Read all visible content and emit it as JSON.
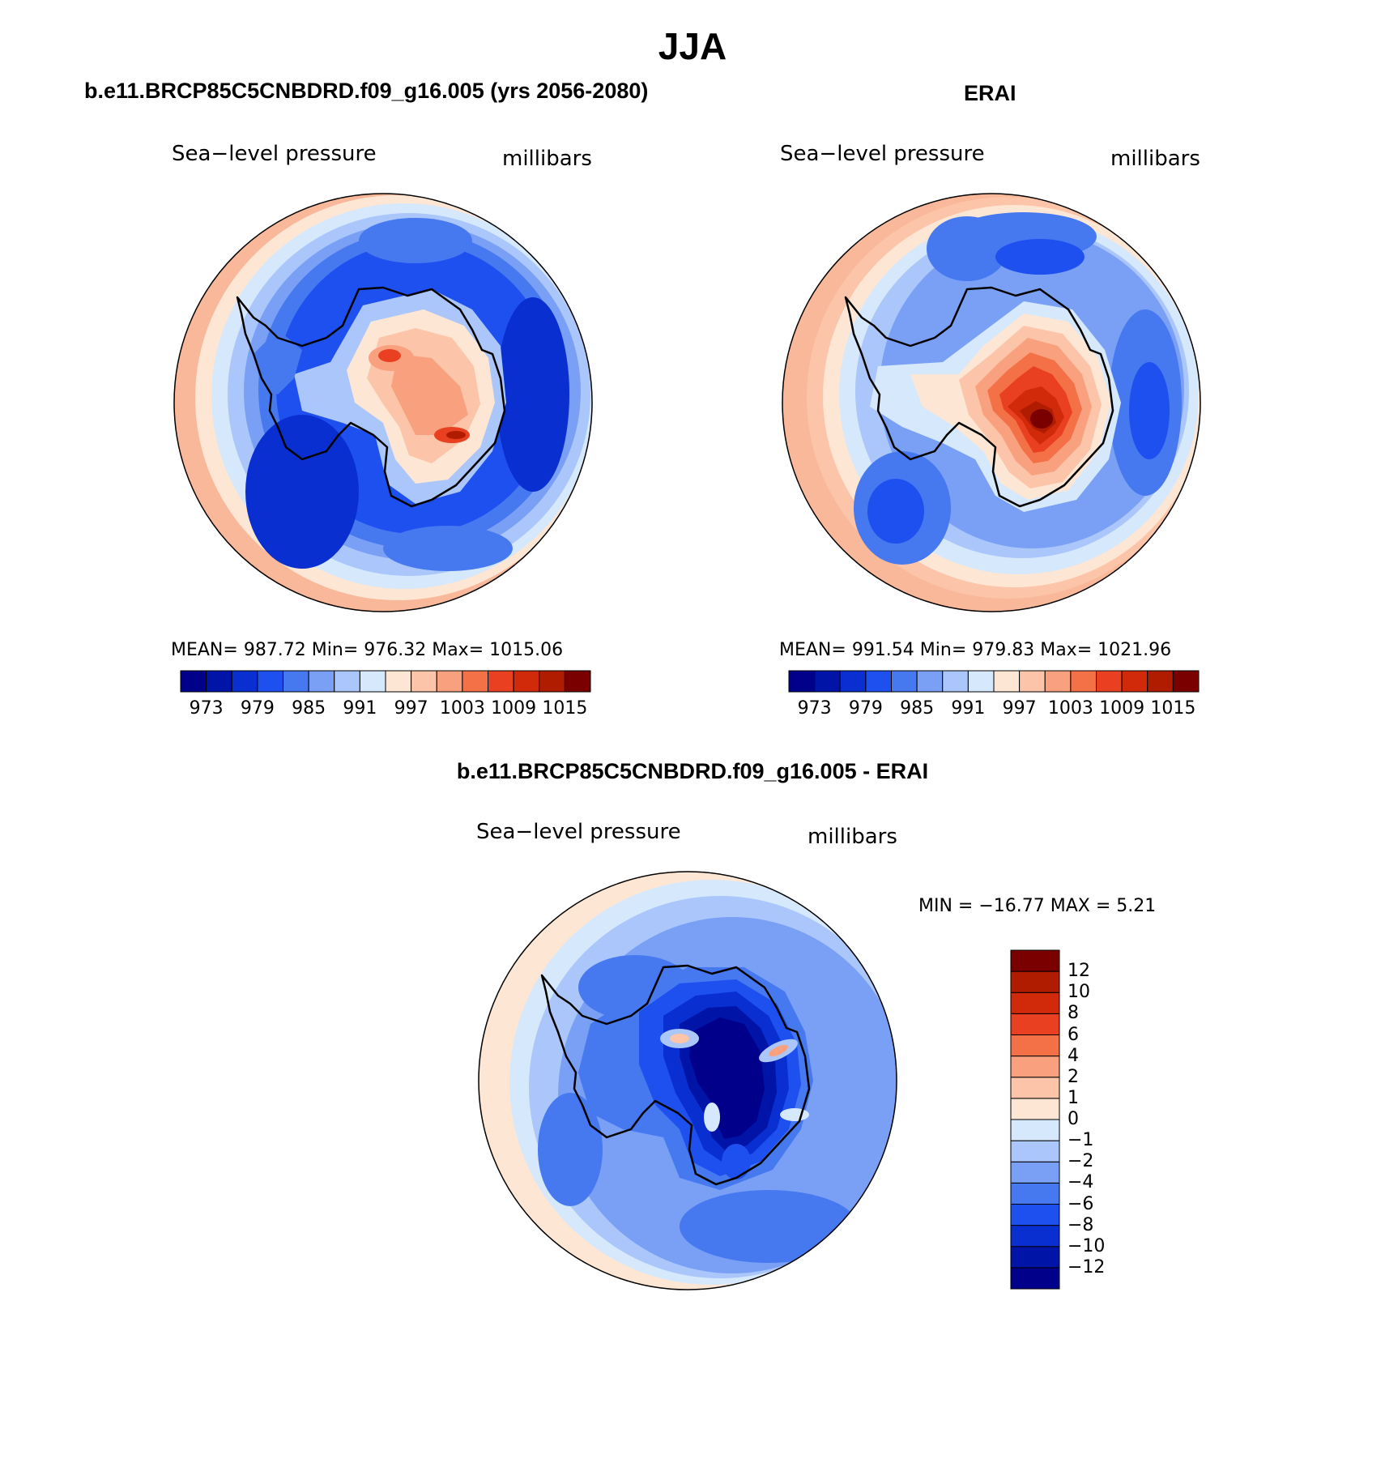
{
  "page": {
    "title": "JJA",
    "diff_title": "b.e11.BRCP85C5CNBDRD.f09_g16.005 - ERAI"
  },
  "panels": [
    {
      "name": "model",
      "title": "b.e11.BRCP85C5CNBDRD.f09_g16.005 (yrs 2056-2080)",
      "left_label": "Sea−level pressure",
      "right_label": "millibars",
      "stats": "MEAN=  987.72    Min=  976.32    Max=  1015.06"
    },
    {
      "name": "erai",
      "title": "ERAI",
      "left_label": "Sea−level pressure",
      "right_label": "millibars",
      "stats": "MEAN=  991.54    Min=  979.83    Max=  1021.96"
    },
    {
      "name": "difference",
      "left_label": "Sea−level pressure",
      "right_label": "millibars",
      "stats": "MIN  =  −16.77  MAX  =     5.21"
    }
  ],
  "abs_colorbar": {
    "colors": [
      "#00008b",
      "#0014a8",
      "#0a2fd0",
      "#1e50f0",
      "#4678f0",
      "#7aa0f5",
      "#aac6fa",
      "#d6e8fc",
      "#fde6d4",
      "#fcc4a8",
      "#f9a07e",
      "#f47148",
      "#e84020",
      "#d02a0a",
      "#b01c00",
      "#7a0000"
    ],
    "labels": [
      "973",
      "979",
      "985",
      "991",
      "997",
      "1003",
      "1009",
      "1015"
    ]
  },
  "diff_colorbar": {
    "colors": [
      "#00008b",
      "#0014a8",
      "#0a2fd0",
      "#1e50f0",
      "#4678f0",
      "#7aa0f5",
      "#aac6fa",
      "#d6e8fc",
      "#fde6d4",
      "#fcc4a8",
      "#f9a07e",
      "#f47148",
      "#e84020",
      "#d02a0a",
      "#b01c00",
      "#7a0000"
    ],
    "labels": [
      "−12",
      "−10",
      "−8",
      "−6",
      "−4",
      "−2",
      "−1",
      "0",
      "1",
      "2",
      "4",
      "6",
      "8",
      "10",
      "12"
    ]
  },
  "chart_data": [
    {
      "type": "heatmap",
      "title": "b.e11.BRCP85C5CNBDRD.f09_g16.005 (yrs 2056-2080)",
      "variable": "Sea-level pressure",
      "units": "millibars",
      "projection": "south polar stereographic",
      "season": "JJA",
      "mean": 987.72,
      "min": 976.32,
      "max": 1015.06,
      "contour_levels": [
        973,
        976,
        979,
        982,
        985,
        988,
        991,
        994,
        997,
        1000,
        1003,
        1006,
        1009,
        1012,
        1015
      ]
    },
    {
      "type": "heatmap",
      "title": "ERAI",
      "variable": "Sea-level pressure",
      "units": "millibars",
      "projection": "south polar stereographic",
      "season": "JJA",
      "mean": 991.54,
      "min": 979.83,
      "max": 1021.96,
      "contour_levels": [
        973,
        976,
        979,
        982,
        985,
        988,
        991,
        994,
        997,
        1000,
        1003,
        1006,
        1009,
        1012,
        1015
      ]
    },
    {
      "type": "heatmap",
      "title": "b.e11.BRCP85C5CNBDRD.f09_g16.005 - ERAI",
      "variable": "Sea-level pressure",
      "units": "millibars",
      "projection": "south polar stereographic",
      "season": "JJA",
      "min": -16.77,
      "max": 5.21,
      "contour_levels": [
        -12,
        -10,
        -8,
        -6,
        -4,
        -2,
        -1,
        0,
        1,
        2,
        4,
        6,
        8,
        10,
        12
      ]
    }
  ]
}
